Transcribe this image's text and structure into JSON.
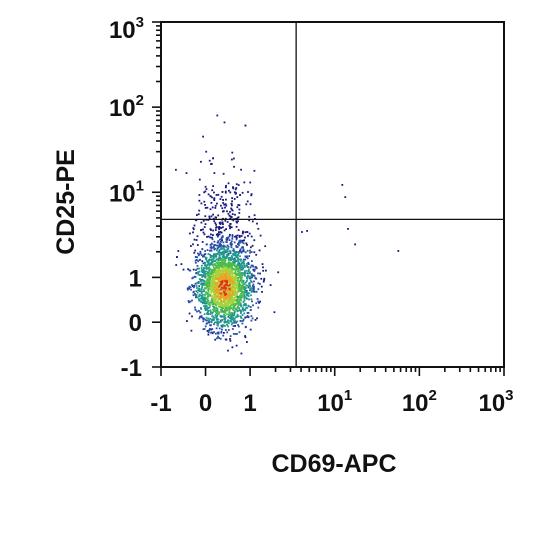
{
  "chart_data": {
    "type": "scatter",
    "subtype": "flow-cytometry-density-dot-plot",
    "xlabel": "CD69-APC",
    "ylabel": "CD25-PE",
    "x_scale": "biexponential",
    "y_scale": "biexponential",
    "xlim": [
      -1,
      1000
    ],
    "ylim": [
      -1,
      1000
    ],
    "x_ticks": [
      {
        "value": -1,
        "base": "-1",
        "exp": ""
      },
      {
        "value": 0,
        "base": "0",
        "exp": ""
      },
      {
        "value": 1,
        "base": "1",
        "exp": ""
      },
      {
        "value": 10,
        "base": "10",
        "exp": "1"
      },
      {
        "value": 100,
        "base": "10",
        "exp": "2"
      },
      {
        "value": 1000,
        "base": "10",
        "exp": "3"
      }
    ],
    "y_ticks": [
      {
        "value": -1,
        "base": "-1",
        "exp": ""
      },
      {
        "value": 0,
        "base": "0",
        "exp": ""
      },
      {
        "value": 1,
        "base": "1",
        "exp": ""
      },
      {
        "value": 10,
        "base": "10",
        "exp": "1"
      },
      {
        "value": 100,
        "base": "10",
        "exp": "2"
      },
      {
        "value": 1000,
        "base": "10",
        "exp": "3"
      }
    ],
    "quadrant_gate": {
      "x": 3.5,
      "y": 4.8
    },
    "population": {
      "x_center": 0.4,
      "y_center": 0.8,
      "x_spread": 0.32,
      "y_spread": 0.55,
      "approx_events": 2600
    },
    "outliers": [
      {
        "x": 12,
        "y": 12.5
      },
      {
        "x": 13,
        "y": 9
      },
      {
        "x": 14,
        "y": 3.8
      },
      {
        "x": 55,
        "y": 2.1
      },
      {
        "x": 17,
        "y": 2.5
      },
      {
        "x": 4.6,
        "y": 3.6
      },
      {
        "x": 4.0,
        "y": 3.5
      }
    ],
    "colormap": [
      "#1a1a7a",
      "#2a4fa8",
      "#1f9a8a",
      "#4cbb4c",
      "#a8d23a",
      "#f0a020",
      "#e83018"
    ],
    "grid": false,
    "legend": "none"
  }
}
